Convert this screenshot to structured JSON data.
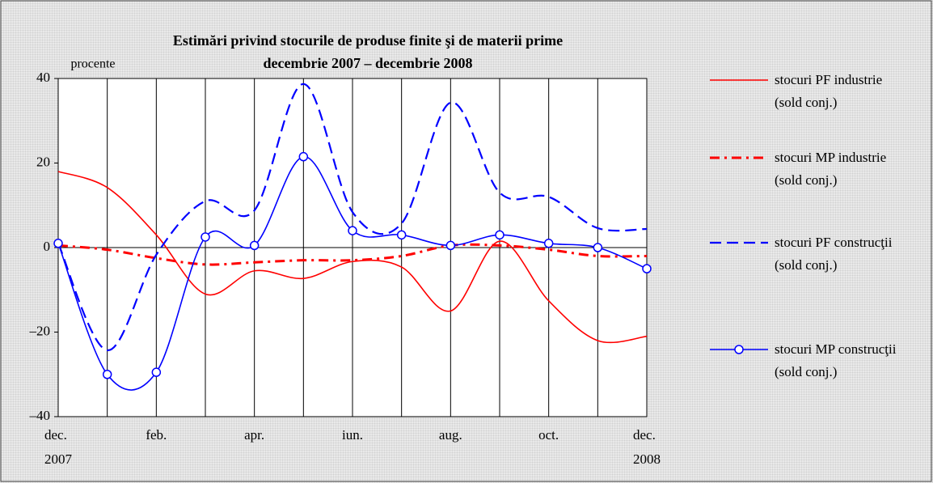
{
  "chart_data": {
    "type": "line",
    "title": "Estimări privind stocurile de produse finite şi de materii prime",
    "subtitle": "decembrie 2007 – decembrie 2008",
    "y_label": "procente",
    "categories": [
      "dec.\n2007",
      null,
      "feb.",
      null,
      "apr.",
      null,
      "iun.",
      null,
      "aug.",
      null,
      "oct.",
      null,
      "dec.\n2008"
    ],
    "ylim": [
      -40,
      40
    ],
    "yticks": [
      {
        "value": -40,
        "label": "–40"
      },
      {
        "value": -20,
        "label": "–20"
      },
      0,
      20,
      40
    ],
    "grid": "vertical",
    "legend": "right",
    "series": [
      {
        "name": "stocuri PF industrie\n(sold conj.)",
        "color": "#ff0000",
        "style": "solid",
        "values": [
          18,
          14.2,
          3,
          -11,
          -5.5,
          -7.3,
          -3.3,
          -4.6,
          -15,
          1.5,
          -12.6,
          -22,
          -21
        ]
      },
      {
        "name": "stocuri MP industrie\n(sold conj.)",
        "color": "#ff0000",
        "style": "dash-dot",
        "values": [
          0.5,
          -0.5,
          -2.5,
          -4,
          -3.5,
          -3,
          -3,
          -2,
          0.5,
          0.5,
          -0.5,
          -2,
          -2
        ]
      },
      {
        "name": "stocuri PF construcţii\n(sold conj.)",
        "color": "#0000ff",
        "style": "dashed",
        "values": [
          1,
          -24.3,
          -1.7,
          11,
          8.8,
          38.7,
          8.4,
          5.7,
          34.3,
          13,
          12,
          4.6,
          4.4
        ]
      },
      {
        "name": "stocuri MP construcţii\n(sold conj.)",
        "color": "#0000ff",
        "style": "solid-markers",
        "values": [
          1,
          -30,
          -29.5,
          2.5,
          0.5,
          21.5,
          4,
          3,
          0.5,
          3,
          1,
          0,
          -5
        ]
      }
    ]
  }
}
